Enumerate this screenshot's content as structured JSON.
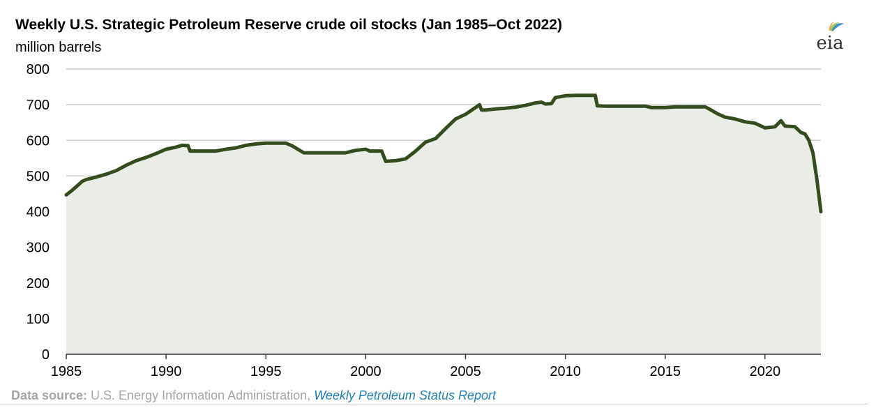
{
  "chart_data": {
    "type": "area",
    "title": "Weekly U.S. Strategic Petroleum Reserve crude oil stocks (Jan 1985–Oct 2022)",
    "subtitle": "million barrels",
    "xlabel": "",
    "ylabel": "",
    "xlim": [
      1985,
      2022.8
    ],
    "ylim": [
      0,
      800
    ],
    "xticks": [
      1985,
      1990,
      1995,
      2000,
      2005,
      2010,
      2015,
      2020
    ],
    "yticks": [
      0,
      100,
      200,
      300,
      400,
      500,
      600,
      700,
      800
    ],
    "grid": true,
    "legend": "none",
    "colors": {
      "line": "#344d1f",
      "fill": "#e9ede6",
      "grid": "#cccccc",
      "axis": "#333333"
    },
    "series": [
      {
        "x": [
          1985.0,
          1985.3,
          1985.5,
          1985.8,
          1986.0,
          1986.5,
          1987.0,
          1987.5,
          1988.0,
          1988.5,
          1989.0,
          1989.5,
          1990.0,
          1990.5,
          1990.8,
          1991.1,
          1991.2,
          1991.5,
          1992.0,
          1992.5,
          1993.0,
          1993.5,
          1994.0,
          1994.5,
          1995.0,
          1995.5,
          1996.0,
          1996.3,
          1996.6,
          1996.9,
          1997.0,
          1998.0,
          1999.0,
          1999.5,
          2000.0,
          2000.2,
          2000.5,
          2000.8,
          2001.0,
          2001.5,
          2002.0,
          2002.5,
          2003.0,
          2003.5,
          2004.0,
          2004.5,
          2005.0,
          2005.5,
          2005.7,
          2005.8,
          2006.0,
          2006.5,
          2007.0,
          2007.5,
          2008.0,
          2008.5,
          2008.8,
          2009.0,
          2009.3,
          2009.5,
          2010.0,
          2010.5,
          2011.0,
          2011.5,
          2011.6,
          2012.0,
          2013.0,
          2014.0,
          2014.3,
          2015.0,
          2015.5,
          2016.0,
          2016.5,
          2017.0,
          2017.3,
          2017.6,
          2018.0,
          2018.5,
          2019.0,
          2019.5,
          2020.0,
          2020.5,
          2020.8,
          2021.0,
          2021.5,
          2021.8,
          2022.0,
          2022.2,
          2022.4,
          2022.6,
          2022.8
        ],
        "values": [
          447,
          460,
          470,
          485,
          490,
          497,
          505,
          515,
          530,
          543,
          552,
          563,
          575,
          581,
          586,
          585,
          570,
          570,
          570,
          570,
          575,
          579,
          586,
          590,
          592,
          592,
          592,
          585,
          575,
          565,
          565,
          565,
          565,
          572,
          575,
          570,
          570,
          570,
          541,
          543,
          548,
          570,
          595,
          605,
          633,
          660,
          673,
          692,
          700,
          685,
          685,
          688,
          690,
          693,
          698,
          705,
          707,
          702,
          703,
          720,
          725,
          726,
          726,
          726,
          697,
          696,
          696,
          696,
          692,
          692,
          694,
          694,
          694,
          694,
          685,
          675,
          665,
          660,
          652,
          648,
          635,
          638,
          655,
          640,
          638,
          622,
          618,
          600,
          565,
          490,
          400
        ]
      }
    ]
  },
  "logo": {
    "text": "eia"
  },
  "source": {
    "label": "Data source:",
    "agency": " U.S. Energy Information Administration, ",
    "report": "Weekly Petroleum Status Report"
  }
}
